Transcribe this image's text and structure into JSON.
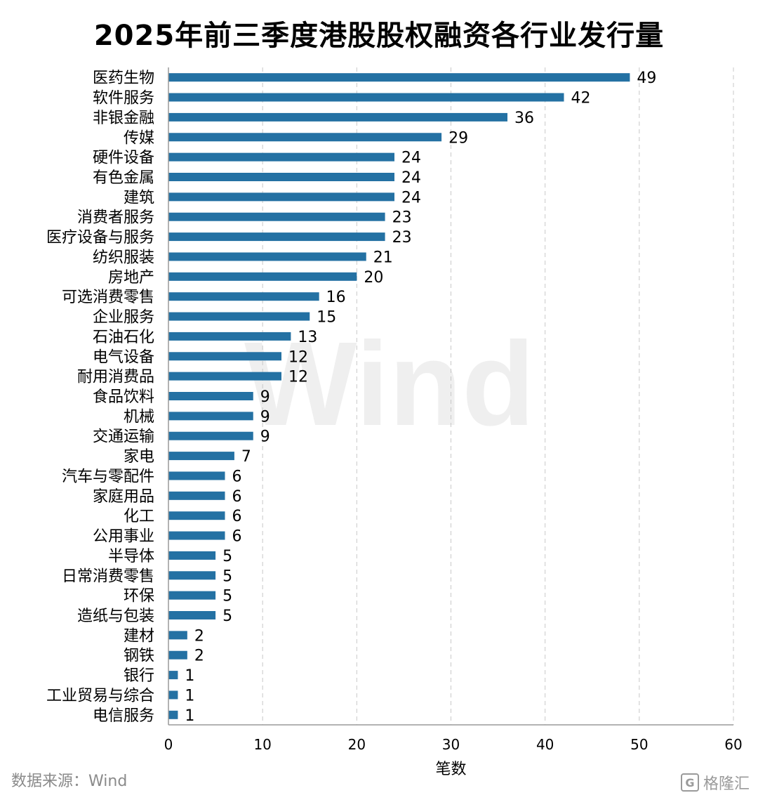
{
  "chart_data": {
    "type": "bar",
    "orientation": "horizontal",
    "title": "2025年前三季度港股股权融资各行业发行量",
    "xlabel": "笔数",
    "ylabel": "",
    "xlim": [
      0,
      60
    ],
    "xticks": [
      0,
      10,
      20,
      30,
      40,
      50,
      60
    ],
    "grid": true,
    "bar_color": "#2471a3",
    "categories": [
      "医药生物",
      "软件服务",
      "非银金融",
      "传媒",
      "硬件设备",
      "有色金属",
      "建筑",
      "消费者服务",
      "医疗设备与服务",
      "纺织服装",
      "房地产",
      "可选消费零售",
      "企业服务",
      "石油石化",
      "电气设备",
      "耐用消费品",
      "食品饮料",
      "机械",
      "交通运输",
      "家电",
      "汽车与零配件",
      "家庭用品",
      "化工",
      "公用事业",
      "半导体",
      "日常消费零售",
      "环保",
      "造纸与包装",
      "建材",
      "钢铁",
      "银行",
      "工业贸易与综合",
      "电信服务"
    ],
    "values": [
      49,
      42,
      36,
      29,
      24,
      24,
      24,
      23,
      23,
      21,
      20,
      16,
      15,
      13,
      12,
      12,
      9,
      9,
      9,
      7,
      6,
      6,
      6,
      6,
      5,
      5,
      5,
      5,
      2,
      2,
      1,
      1,
      1
    ]
  },
  "footer": {
    "source": "数据来源：Wind",
    "watermark_text": "格隆汇",
    "watermark_mark": "G",
    "bg_watermark": "Wind"
  }
}
